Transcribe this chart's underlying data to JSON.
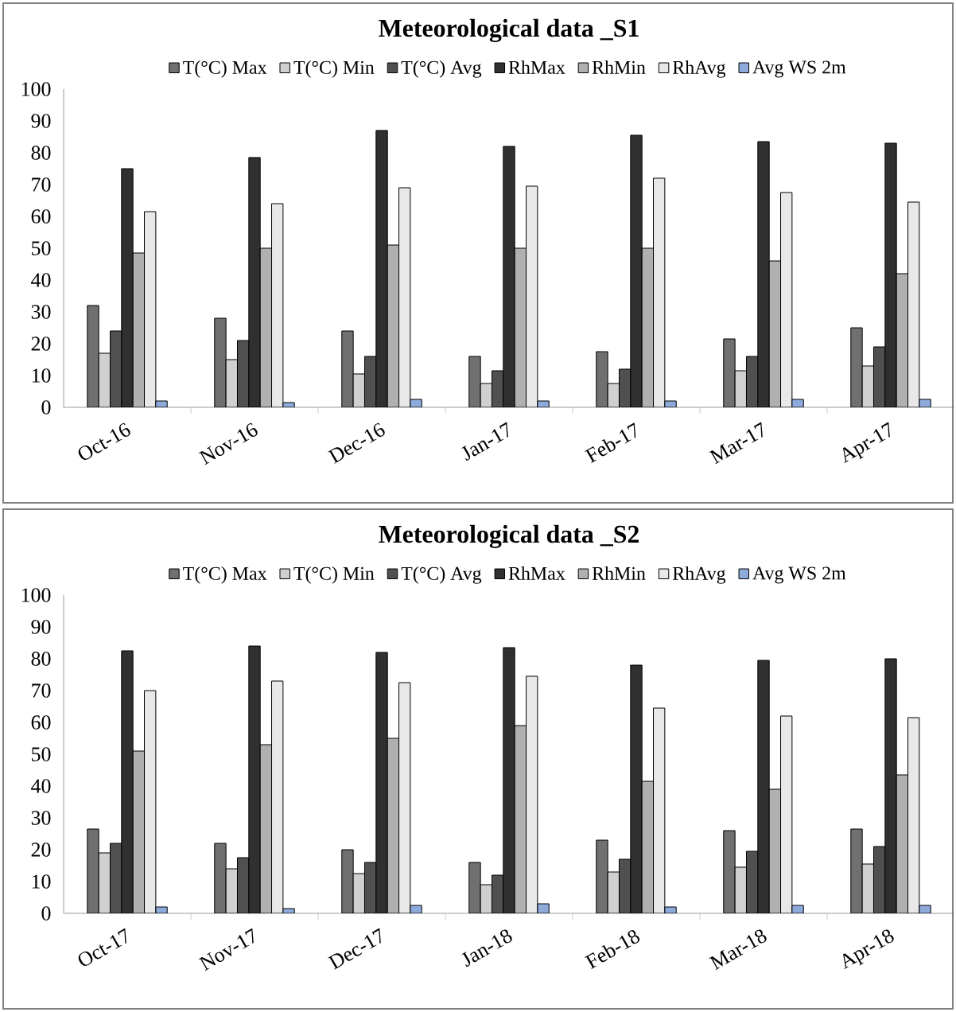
{
  "chart_data": [
    {
      "type": "bar",
      "title": "Meteorological  data _S1",
      "categories": [
        "Oct-16",
        "Nov-16",
        "Dec-16",
        "Jan-17",
        "Feb-17",
        "Mar-17",
        "Apr-17"
      ],
      "ylim": [
        0,
        100
      ],
      "yticks": [
        0,
        10,
        20,
        30,
        40,
        50,
        60,
        70,
        80,
        90,
        100
      ],
      "legend": "top",
      "grid": false,
      "series": [
        {
          "name": "T(°C)  Max",
          "color": "#707070",
          "values": [
            32,
            28,
            24,
            16,
            17.5,
            21.5,
            25
          ]
        },
        {
          "name": "T(°C)   Min",
          "color": "#d0d0d0",
          "values": [
            17,
            15,
            10.5,
            7.5,
            7.5,
            11.5,
            13
          ]
        },
        {
          "name": "T(°C) Avg",
          "color": "#505050",
          "values": [
            24,
            21,
            16,
            11.5,
            12,
            16,
            19
          ]
        },
        {
          "name": "RhMax",
          "color": "#303030",
          "values": [
            75,
            78.5,
            87,
            82,
            85.5,
            83.5,
            83
          ]
        },
        {
          "name": "RhMin",
          "color": "#b0b0b0",
          "values": [
            48.5,
            50,
            51,
            50,
            50,
            46,
            42
          ]
        },
        {
          "name": "RhAvg",
          "color": "#e8e8e8",
          "values": [
            61.5,
            64,
            69,
            69.5,
            72,
            67.5,
            64.5
          ]
        },
        {
          "name": "Avg WS 2m",
          "color": "#8eaadb",
          "values": [
            2,
            1.5,
            2.5,
            2,
            2,
            2.5,
            2.5
          ]
        }
      ]
    },
    {
      "type": "bar",
      "title": "Meteorological  data _S2",
      "categories": [
        "Oct-17",
        "Nov-17",
        "Dec-17",
        "Jan-18",
        "Feb-18",
        "Mar-18",
        "Apr-18"
      ],
      "ylim": [
        0,
        100
      ],
      "yticks": [
        0,
        10,
        20,
        30,
        40,
        50,
        60,
        70,
        80,
        90,
        100
      ],
      "legend": "top",
      "grid": false,
      "series": [
        {
          "name": "T(°C)  Max",
          "color": "#707070",
          "values": [
            26.5,
            22,
            20,
            16,
            23,
            26,
            26.5
          ]
        },
        {
          "name": "T(°C)   Min",
          "color": "#d0d0d0",
          "values": [
            19,
            14,
            12.5,
            9,
            13,
            14.5,
            15.5
          ]
        },
        {
          "name": "T(°C) Avg",
          "color": "#505050",
          "values": [
            22,
            17.5,
            16,
            12,
            17,
            19.5,
            21
          ]
        },
        {
          "name": "RhMax",
          "color": "#303030",
          "values": [
            82.5,
            84,
            82,
            83.5,
            78,
            79.5,
            80
          ]
        },
        {
          "name": "RhMin",
          "color": "#b0b0b0",
          "values": [
            51,
            53,
            55,
            59,
            41.5,
            39,
            43.5
          ]
        },
        {
          "name": "RhAvg",
          "color": "#e8e8e8",
          "values": [
            70,
            73,
            72.5,
            74.5,
            64.5,
            62,
            61.5
          ]
        },
        {
          "name": "Avg WS 2m",
          "color": "#8eaadb",
          "values": [
            2,
            1.5,
            2.5,
            3,
            2,
            2.5,
            2.5
          ]
        }
      ]
    }
  ]
}
